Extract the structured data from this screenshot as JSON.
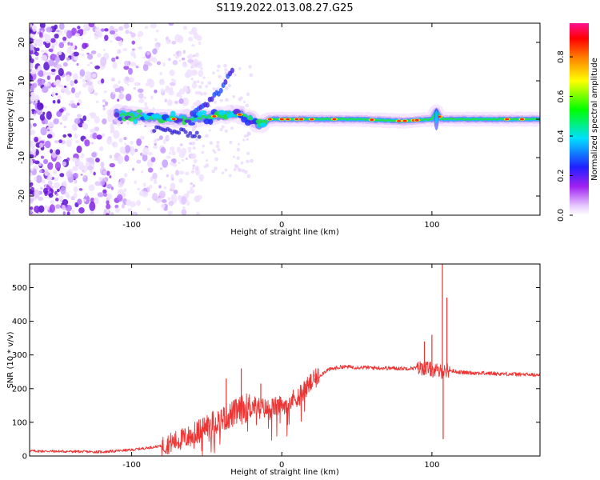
{
  "figure": {
    "title": "S119.2022.013.08.27.G25"
  },
  "chart_data": [
    {
      "type": "heatmap",
      "title": "",
      "xlabel": "Height of straight line (km)",
      "ylabel": "Frequency (Hz)",
      "xlim": [
        -168,
        172
      ],
      "ylim": [
        -25,
        25
      ],
      "xticks": [
        -100,
        0,
        100
      ],
      "yticks": [
        -20,
        -10,
        0,
        10,
        20
      ],
      "colorbar": {
        "label": "Normalized spectral amplitude",
        "range": [
          0,
          1
        ],
        "ticks": [
          "0.0",
          "0.2",
          "0.4",
          "0.6",
          "0.8"
        ],
        "colormap": "rainbow (white-purple-blue-cyan-green-yellow-red-magenta)"
      },
      "ridge": {
        "description": "Main spectral ridge near 0 Hz",
        "points": [
          {
            "x": -110,
            "y": 1.5
          },
          {
            "x": -90,
            "y": 0.5
          },
          {
            "x": -70,
            "y": 0
          },
          {
            "x": -50,
            "y": 0.5
          },
          {
            "x": -30,
            "y": 1.5
          },
          {
            "x": -20,
            "y": 0
          },
          {
            "x": -15,
            "y": -1.5
          },
          {
            "x": -8,
            "y": 0
          },
          {
            "x": 0,
            "y": 0
          },
          {
            "x": 50,
            "y": 0
          },
          {
            "x": 80,
            "y": -0.5
          },
          {
            "x": 100,
            "y": 0
          },
          {
            "x": 103,
            "y": 2
          },
          {
            "x": 106,
            "y": 0
          },
          {
            "x": 150,
            "y": 0
          },
          {
            "x": 172,
            "y": 0
          }
        ]
      },
      "branch": {
        "description": "Secondary rising branch",
        "points": [
          {
            "x": -60,
            "y": 1
          },
          {
            "x": -50,
            "y": 4
          },
          {
            "x": -40,
            "y": 8
          },
          {
            "x": -33,
            "y": 13
          }
        ]
      },
      "grid": false
    },
    {
      "type": "line",
      "title": "",
      "xlabel": "Height of straight line (km)",
      "ylabel": "SNR (10 * v/v)",
      "xlim": [
        -168,
        172
      ],
      "ylim": [
        0,
        570
      ],
      "xticks": [
        -100,
        0,
        100
      ],
      "yticks": [
        0,
        100,
        200,
        300,
        400,
        500
      ],
      "color": "#ee3333",
      "envelope": [
        {
          "x": -168,
          "y": 15
        },
        {
          "x": -120,
          "y": 12
        },
        {
          "x": -100,
          "y": 18
        },
        {
          "x": -80,
          "y": 30
        },
        {
          "x": -60,
          "y": 60
        },
        {
          "x": -50,
          "y": 90
        },
        {
          "x": -40,
          "y": 110
        },
        {
          "x": -30,
          "y": 130
        },
        {
          "x": -20,
          "y": 150
        },
        {
          "x": -10,
          "y": 140
        },
        {
          "x": 0,
          "y": 150
        },
        {
          "x": 10,
          "y": 175
        },
        {
          "x": 20,
          "y": 220
        },
        {
          "x": 30,
          "y": 255
        },
        {
          "x": 40,
          "y": 265
        },
        {
          "x": 60,
          "y": 262
        },
        {
          "x": 80,
          "y": 260
        },
        {
          "x": 95,
          "y": 262
        },
        {
          "x": 105,
          "y": 250
        },
        {
          "x": 110,
          "y": 255
        },
        {
          "x": 120,
          "y": 248
        },
        {
          "x": 140,
          "y": 245
        },
        {
          "x": 160,
          "y": 242
        },
        {
          "x": 172,
          "y": 240
        }
      ],
      "spikes": [
        {
          "x": -27,
          "y": 260
        },
        {
          "x": -37,
          "y": 230
        },
        {
          "x": -14,
          "y": 215
        },
        {
          "x": 95,
          "y": 340
        },
        {
          "x": 100,
          "y": 360
        },
        {
          "x": 107,
          "y": 570
        },
        {
          "x": 107.5,
          "y": 50
        },
        {
          "x": 110,
          "y": 470
        }
      ],
      "grid": false
    }
  ]
}
